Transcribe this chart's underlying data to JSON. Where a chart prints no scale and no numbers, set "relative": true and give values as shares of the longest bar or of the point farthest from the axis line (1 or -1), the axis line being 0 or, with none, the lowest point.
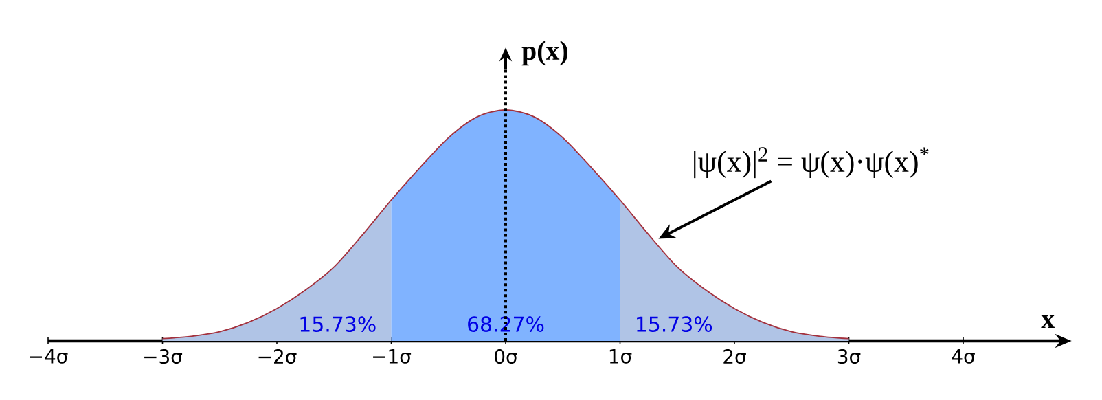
{
  "chart_data": {
    "type": "area",
    "relative": true,
    "xlabel": "x",
    "ylabel": "p(x)",
    "xlim": [
      -4,
      4.86
    ],
    "xticks": [
      {
        "value": -4,
        "label": "−4σ"
      },
      {
        "value": -3,
        "label": "−3σ"
      },
      {
        "value": -2,
        "label": "−2σ"
      },
      {
        "value": -1,
        "label": "−1σ"
      },
      {
        "value": 0,
        "label": "0σ"
      },
      {
        "value": 1,
        "label": "1σ"
      },
      {
        "value": 2,
        "label": "2σ"
      },
      {
        "value": 3,
        "label": "3σ"
      },
      {
        "value": 4,
        "label": "4σ"
      }
    ],
    "tick_labels": "x",
    "marker": "none",
    "series": [
      {
        "color": "#b0c4e6",
        "x": [
          -3,
          -2.75,
          -2.5,
          -2.25,
          -2,
          -1.75,
          -1.5,
          -1.25,
          -1
        ],
        "values": [
          0.01,
          0.02,
          0.04,
          0.08,
          0.14,
          0.22,
          0.32,
          0.46,
          0.61
        ]
      },
      {
        "color": "#80b3ff",
        "x": [
          -1,
          -0.75,
          -0.5,
          -0.25,
          0,
          0.25,
          0.5,
          0.75,
          1
        ],
        "values": [
          0.61,
          0.75,
          0.88,
          0.97,
          1,
          0.97,
          0.88,
          0.75,
          0.61
        ]
      },
      {
        "color": "#b0c4e6",
        "x": [
          1,
          1.25,
          1.5,
          1.75,
          2,
          2.25,
          2.5,
          2.75,
          3
        ],
        "values": [
          0.61,
          0.46,
          0.32,
          0.22,
          0.14,
          0.08,
          0.04,
          0.02,
          0.01
        ]
      },
      {
        "type": "line",
        "color": "#a3303c",
        "x": [
          -3,
          -2.75,
          -2.5,
          -2.25,
          -2,
          -1.75,
          -1.5,
          -1.25,
          -1,
          -0.75,
          -0.5,
          -0.25,
          0,
          0.25,
          0.5,
          0.75,
          1,
          1.25,
          1.5,
          1.75,
          2,
          2.25,
          2.5,
          2.75,
          3
        ],
        "values": [
          0.01,
          0.02,
          0.04,
          0.08,
          0.14,
          0.22,
          0.32,
          0.46,
          0.61,
          0.75,
          0.88,
          0.97,
          1,
          0.97,
          0.88,
          0.75,
          0.61,
          0.46,
          0.32,
          0.22,
          0.14,
          0.08,
          0.04,
          0.02,
          0.01
        ]
      }
    ],
    "annotations": [
      "15.73%",
      "68.27%",
      "15.73%",
      {
        "text": "|ψ(x)|$^{2}$ = ψ(x)·ψ(x)$^{*}$",
        "x": 1.3,
        "y": 0.43
      }
    ]
  }
}
